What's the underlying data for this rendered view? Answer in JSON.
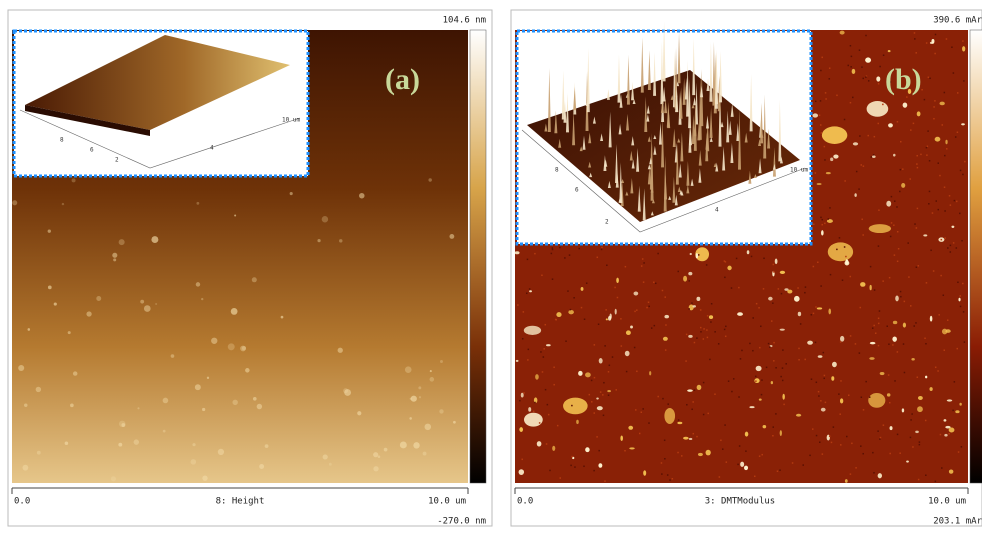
{
  "panels": [
    {
      "label": "(a)",
      "colorbar_max": "104.6 nm",
      "colorbar_min": "-270.0 nm",
      "x_start": "0.0",
      "channel": "8: Height",
      "x_end": "10.0 um",
      "inset_ticks": [
        "2",
        "4",
        "6",
        "8",
        "10 um"
      ]
    },
    {
      "label": "(b)",
      "colorbar_max": "390.6 mAr",
      "colorbar_min": "203.1 mAr",
      "x_start": "0.0",
      "channel": "3: DMTModulus",
      "x_end": "10.0 um",
      "inset_ticks": [
        "2",
        "4",
        "6",
        "8",
        "10 um"
      ]
    }
  ]
}
